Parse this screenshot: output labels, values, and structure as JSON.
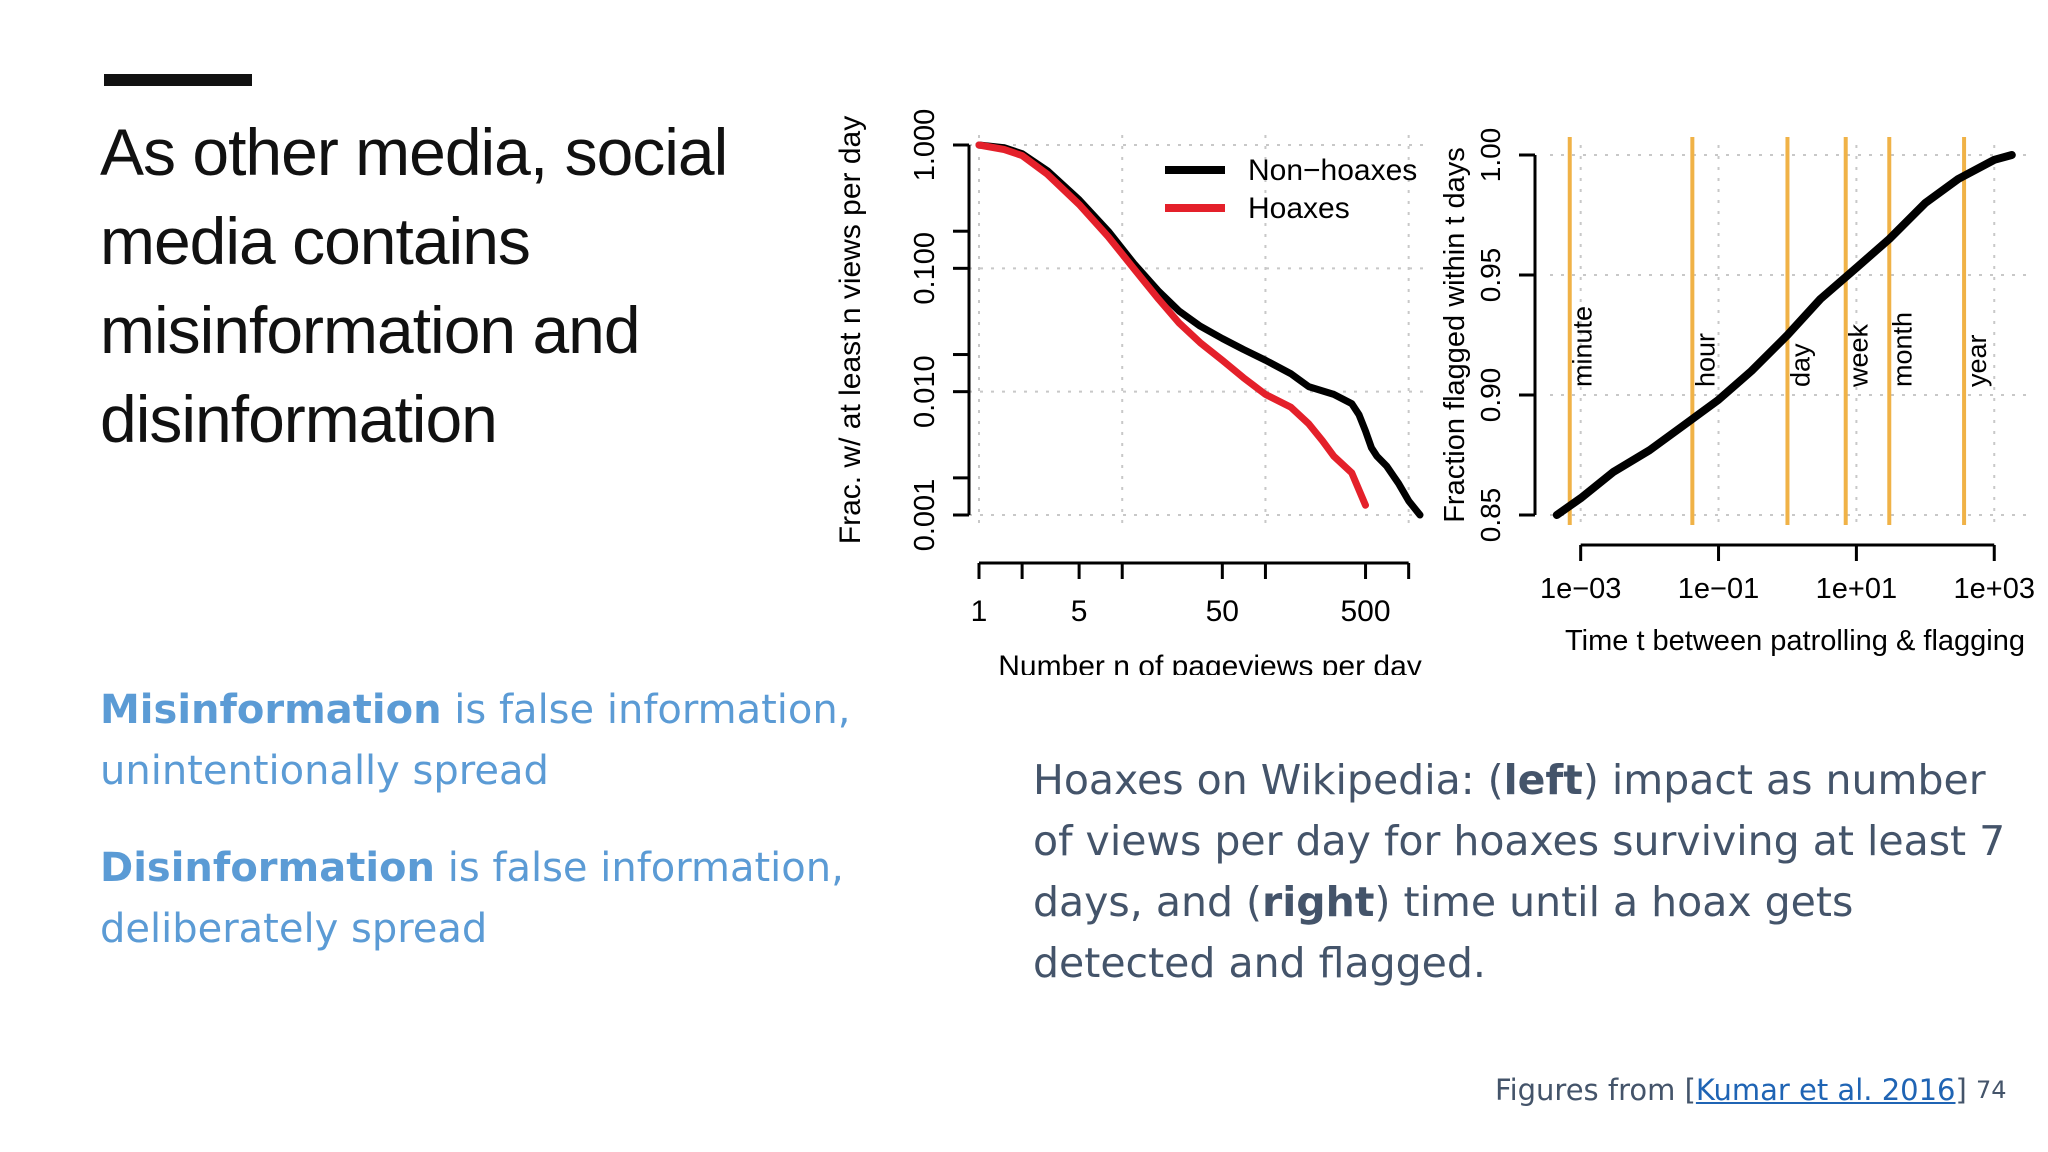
{
  "slide": {
    "title": "As other media, social media contains misinformation and disinformation",
    "definitions": [
      {
        "term": "Misinformation",
        "rest": " is false information, unintentionally spread"
      },
      {
        "term": "Disinformation",
        "rest": " is false information, deliberately spread"
      }
    ],
    "caption": {
      "p1": "Hoaxes on Wikipedia: (",
      "b1": "left",
      "p2": ") impact as number of views per day for hoaxes surviving at least 7 days, and (",
      "b2": "right",
      "p3": ") time until a hoax gets detected and flagged."
    },
    "footer": {
      "prefix": "Figures from [",
      "link": "Kumar et al. 2016",
      "suffix": "]"
    },
    "page_number": "74",
    "colors": {
      "definition": "#5b9bd5",
      "caption": "#44546a",
      "link": "#1f64b4",
      "accent_bar": "#111111"
    }
  },
  "chart_data": [
    {
      "type": "line",
      "xlabel": "Number n of pageviews per day",
      "ylabel": "Frac. w/ at least n views per day",
      "x_scale": "log",
      "y_scale": "log",
      "xlim": [
        1,
        1200
      ],
      "ylim": [
        0.001,
        1
      ],
      "x_ticks": [
        1,
        2,
        5,
        10,
        50,
        100,
        500,
        1000
      ],
      "x_tick_labels": [
        "1",
        "5",
        "50",
        "500"
      ],
      "x_tick_label_values": [
        1,
        5,
        50,
        500
      ],
      "y_ticks": [
        0.001,
        0.002,
        0.01,
        0.02,
        0.1,
        0.2,
        1
      ],
      "y_tick_labels": [
        "0.001",
        "0.010",
        "0.100",
        "1.000"
      ],
      "y_tick_label_values": [
        0.001,
        0.01,
        0.1,
        1
      ],
      "grid": true,
      "legend": "top-right",
      "series": [
        {
          "name": "Non−hoaxes",
          "color": "#000000",
          "x": [
            1,
            1.5,
            2,
            3,
            5,
            8,
            12,
            18,
            25,
            35,
            50,
            70,
            100,
            150,
            200,
            300,
            400,
            450,
            500,
            550,
            600,
            700,
            850,
            1000,
            1200
          ],
          "y": [
            1,
            0.95,
            0.85,
            0.62,
            0.36,
            0.2,
            0.11,
            0.065,
            0.045,
            0.034,
            0.027,
            0.022,
            0.018,
            0.014,
            0.011,
            0.0095,
            0.008,
            0.0065,
            0.0048,
            0.0035,
            0.003,
            0.0025,
            0.0018,
            0.0013,
            0.001
          ]
        },
        {
          "name": "Hoaxes",
          "color": "#e4202a",
          "x": [
            1,
            1.5,
            2,
            3,
            5,
            8,
            12,
            18,
            25,
            35,
            50,
            70,
            100,
            150,
            200,
            250,
            300,
            400,
            500
          ],
          "y": [
            1,
            0.92,
            0.82,
            0.58,
            0.33,
            0.18,
            0.1,
            0.056,
            0.036,
            0.025,
            0.018,
            0.013,
            0.0095,
            0.0075,
            0.0055,
            0.004,
            0.003,
            0.0022,
            0.0012
          ]
        }
      ]
    },
    {
      "type": "line",
      "xlabel": "Time t between patrolling & flagging",
      "ylabel": "Fraction flagged within t days",
      "x_scale": "log",
      "xlim": [
        0.0007,
        2000
      ],
      "ylim": [
        0.85,
        1.0
      ],
      "x_ticks": [
        0.001,
        0.1,
        10,
        1000
      ],
      "x_tick_labels": [
        "1e−03",
        "1e−01",
        "1e+01",
        "1e+03"
      ],
      "y_ticks": [
        0.85,
        0.9,
        0.95,
        1.0
      ],
      "y_tick_labels": [
        "0.85",
        "0.90",
        "0.95",
        "1.00"
      ],
      "grid": true,
      "reference_lines": [
        {
          "label": "minute",
          "x": 0.000694,
          "color": "#f0b247"
        },
        {
          "label": "hour",
          "x": 0.0417,
          "color": "#f0b247"
        },
        {
          "label": "day",
          "x": 1,
          "color": "#f0b247"
        },
        {
          "label": "week",
          "x": 7,
          "color": "#f0b247"
        },
        {
          "label": "month",
          "x": 30,
          "color": "#f0b247"
        },
        {
          "label": "year",
          "x": 365,
          "color": "#f0b247"
        }
      ],
      "series": [
        {
          "color": "#000000",
          "x": [
            0.00045,
            0.001,
            0.003,
            0.01,
            0.03,
            0.1,
            0.3,
            1,
            3,
            10,
            30,
            100,
            300,
            1000,
            1800
          ],
          "y": [
            0.85,
            0.857,
            0.868,
            0.877,
            0.887,
            0.898,
            0.91,
            0.925,
            0.94,
            0.953,
            0.965,
            0.98,
            0.99,
            0.998,
            1.0
          ]
        }
      ]
    }
  ]
}
